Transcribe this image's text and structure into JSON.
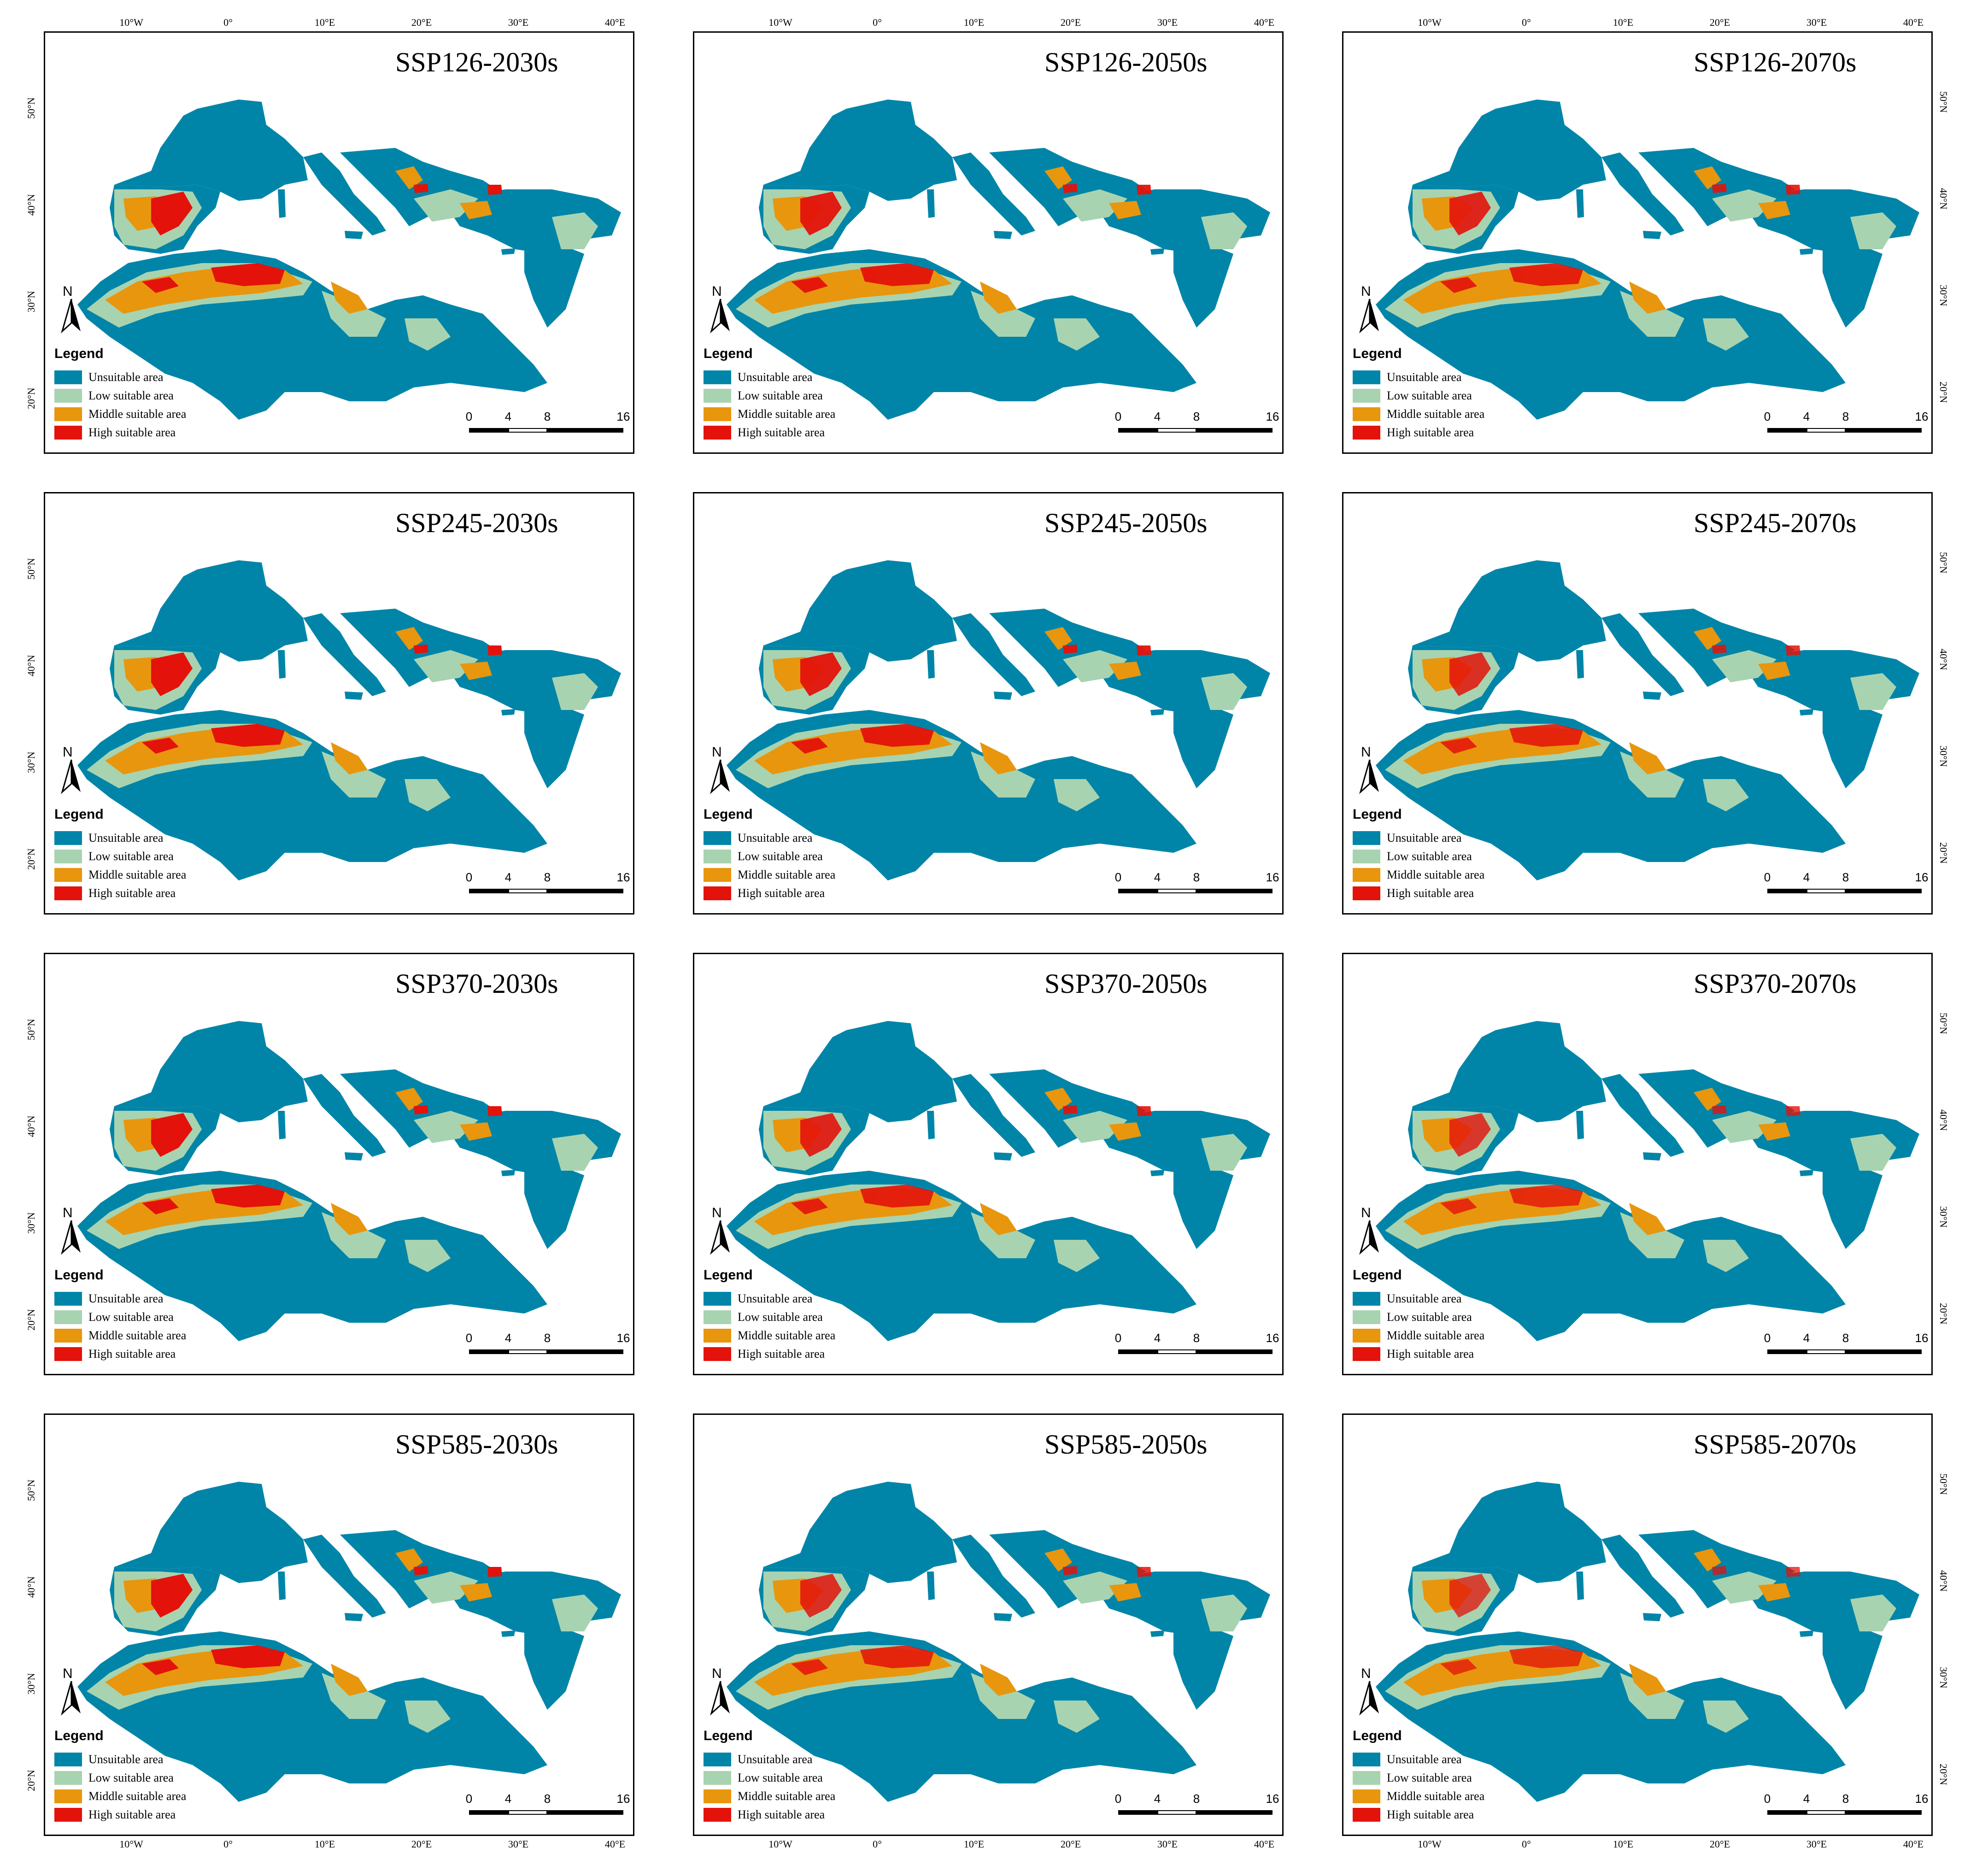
{
  "colors": {
    "unsuitable": "#0085a8",
    "low": "#a8d3b0",
    "middle": "#e8960e",
    "high": "#e3120b"
  },
  "axes": {
    "lon_ticks": [
      "10°W",
      "0°",
      "10°E",
      "20°E",
      "30°E",
      "40°E"
    ],
    "lat_ticks": [
      "50°N",
      "40°N",
      "30°N",
      "20°N"
    ]
  },
  "legend": {
    "title": "Legend",
    "items": [
      "Unsuitable area",
      "Low suitable area",
      "Middle suitable area",
      "High suitable area"
    ]
  },
  "north_label": "N",
  "scalebar": {
    "ticks": [
      "0",
      "4",
      "8",
      "16"
    ],
    "unit": "km"
  },
  "panels": [
    {
      "title": "SSP126-2030s",
      "high_level": 1.0
    },
    {
      "title": "SSP126-2050s",
      "high_level": 0.95
    },
    {
      "title": "SSP126-2070s",
      "high_level": 0.9
    },
    {
      "title": "SSP245-2030s",
      "high_level": 1.0
    },
    {
      "title": "SSP245-2050s",
      "high_level": 0.95
    },
    {
      "title": "SSP245-2070s",
      "high_level": 0.85
    },
    {
      "title": "SSP370-2030s",
      "high_level": 1.0
    },
    {
      "title": "SSP370-2050s",
      "high_level": 0.9
    },
    {
      "title": "SSP370-2070s",
      "high_level": 0.8
    },
    {
      "title": "SSP585-2030s",
      "high_level": 1.0
    },
    {
      "title": "SSP585-2050s",
      "high_level": 0.85
    },
    {
      "title": "SSP585-2070s",
      "high_level": 0.75
    }
  ]
}
